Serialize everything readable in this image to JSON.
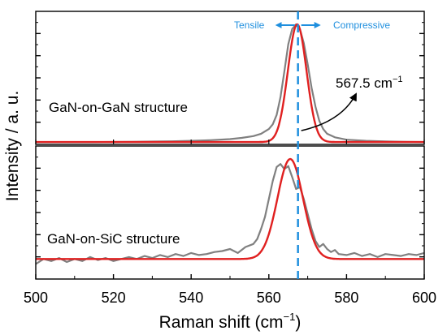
{
  "chart_data": {
    "type": "line",
    "ylabel": "Intensity / a. u.",
    "xlabel": "Raman shift (cm",
    "xlabel_sup": "−1",
    "xlabel_close": ")",
    "xlim": [
      500,
      600
    ],
    "x_ticks": [
      "500",
      "520",
      "540",
      "560",
      "580",
      "600"
    ],
    "reference_line_x": 567.5,
    "colors": {
      "experimental": "#808080",
      "fit": "#e02020",
      "reference": "#1f8fde",
      "axis": "#000000"
    },
    "annotations": {
      "tensile": "Tensile",
      "compressive": "Compressive",
      "peak_value": "567.5 cm",
      "peak_sup": "−1"
    },
    "panels": [
      {
        "label": "GaN-on-GaN structure",
        "ylim": [
          0,
          1.13
        ],
        "series": [
          {
            "role": "experimental",
            "x": [
              500,
              505,
              510,
              515,
              520,
              525,
              530,
              535,
              540,
              545,
              550,
              553,
              556,
              558,
              560,
              561,
              562,
              563,
              564,
              565,
              566,
              567,
              568,
              569,
              570,
              571,
              572,
              573,
              574,
              575,
              577,
              580,
              585,
              590,
              595,
              600
            ],
            "y": [
              0.02,
              0.02,
              0.02,
              0.02,
              0.021,
              0.022,
              0.024,
              0.026,
              0.03,
              0.036,
              0.045,
              0.055,
              0.07,
              0.09,
              0.13,
              0.17,
              0.25,
              0.4,
              0.62,
              0.85,
              0.98,
              1.02,
              0.98,
              0.86,
              0.68,
              0.48,
              0.32,
              0.2,
              0.13,
              0.09,
              0.06,
              0.04,
              0.03,
              0.025,
              0.022,
              0.02
            ]
          },
          {
            "role": "fit",
            "model": "gaussian",
            "center": 567.3,
            "width": 2.4,
            "amplitude": 1.0,
            "baseline": 0.02
          }
        ]
      },
      {
        "label": "GaN-on-SiC structure",
        "ylim": [
          -0.2,
          1.13
        ],
        "series": [
          {
            "role": "experimental",
            "x": [
              500,
              502,
              504,
              506,
              508,
              510,
              512,
              514,
              516,
              518,
              520,
              522,
              524,
              526,
              528,
              530,
              532,
              534,
              536,
              538,
              540,
              542,
              544,
              546,
              548,
              550,
              552,
              554,
              556,
              557,
              558,
              559,
              560,
              561,
              562,
              563,
              564,
              565,
              566,
              567,
              568,
              569,
              570,
              571,
              572,
              573,
              574,
              575,
              576,
              577,
              578,
              580,
              582,
              584,
              586,
              588,
              590,
              592,
              594,
              596,
              598,
              600
            ],
            "y": [
              -0.05,
              0.0,
              -0.02,
              0.01,
              -0.03,
              0.0,
              -0.02,
              0.02,
              -0.01,
              0.01,
              -0.02,
              0.0,
              0.02,
              0.0,
              0.03,
              0.01,
              0.04,
              0.02,
              0.05,
              0.03,
              0.06,
              0.04,
              0.05,
              0.07,
              0.08,
              0.1,
              0.06,
              0.12,
              0.15,
              0.2,
              0.3,
              0.42,
              0.6,
              0.78,
              0.92,
              0.95,
              0.9,
              0.93,
              0.82,
              0.7,
              0.72,
              0.6,
              0.45,
              0.3,
              0.18,
              0.12,
              0.15,
              0.1,
              0.07,
              0.09,
              0.05,
              0.04,
              0.06,
              0.03,
              0.05,
              0.02,
              0.05,
              0.04,
              0.03,
              0.05,
              0.04,
              0.06
            ]
          },
          {
            "role": "fit",
            "model": "gaussian",
            "center": 565.5,
            "width": 3.3,
            "amplitude": 1.0,
            "baseline": 0.0
          }
        ]
      }
    ]
  }
}
